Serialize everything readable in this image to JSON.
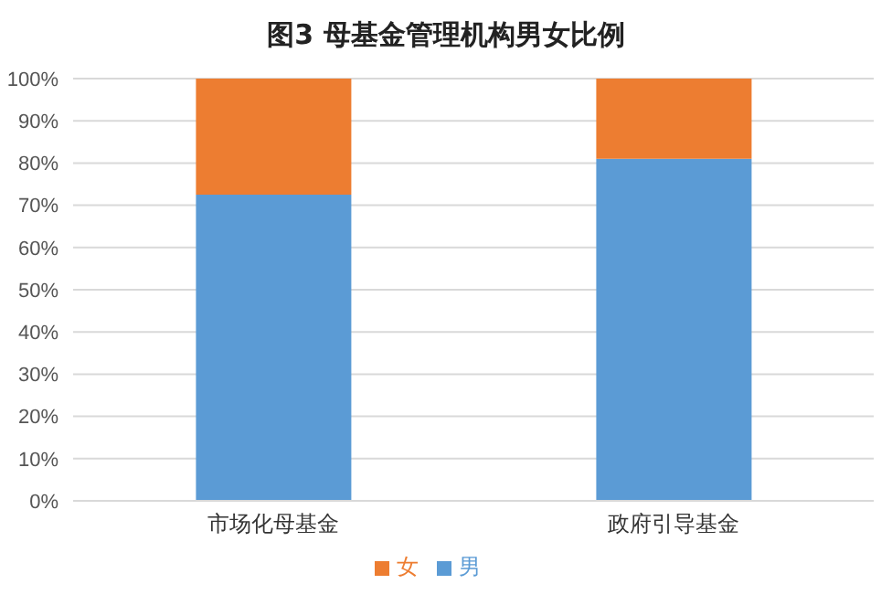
{
  "chart_data": {
    "type": "bar",
    "title": "图3 母基金管理机构男女比例",
    "categories": [
      "市场化母基金",
      "政府引导基金"
    ],
    "stacked": true,
    "series": [
      {
        "name": "男",
        "color": "#5b9bd5",
        "values": [
          72.5,
          81
        ]
      },
      {
        "name": "女",
        "color": "#ed7d31",
        "values": [
          27.5,
          19
        ]
      }
    ],
    "ylim": [
      0,
      100
    ],
    "yticks": [
      {
        "value": 0,
        "label": "0%"
      },
      {
        "value": 10,
        "label": "10%"
      },
      {
        "value": 20,
        "label": "20%"
      },
      {
        "value": 30,
        "label": "30%"
      },
      {
        "value": 40,
        "label": "40%"
      },
      {
        "value": 50,
        "label": "50%"
      },
      {
        "value": 60,
        "label": "60%"
      },
      {
        "value": 70,
        "label": "70%"
      },
      {
        "value": 80,
        "label": "80%"
      },
      {
        "value": 90,
        "label": "90%"
      },
      {
        "value": 100,
        "label": "100%"
      }
    ],
    "grid": "y",
    "legend": "bottom"
  }
}
